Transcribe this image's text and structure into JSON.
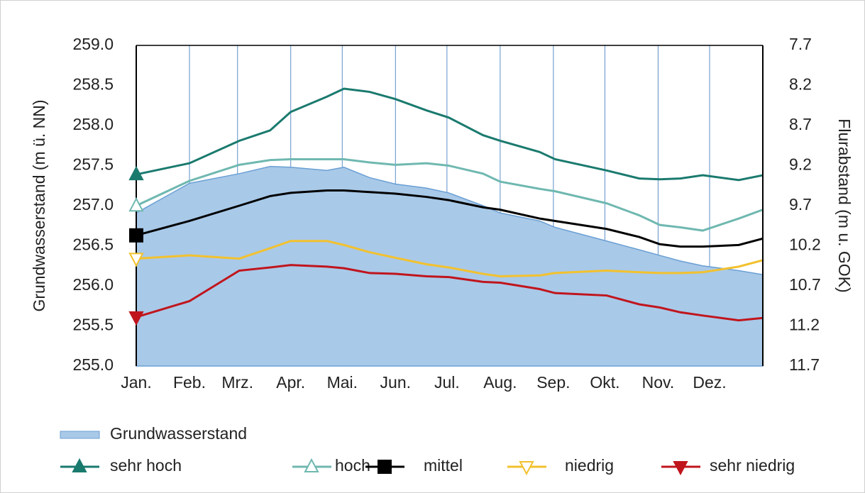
{
  "chart_data": {
    "type": "line",
    "y_label": "Grundwasserstand (m ü. NN)",
    "y2_label": "Flurabstand (m u. GOK)",
    "x": [
      1,
      32,
      61,
      79,
      91,
      112,
      122,
      137,
      152,
      170,
      183,
      203,
      213,
      236,
      245,
      275,
      294,
      306,
      318,
      331,
      352,
      366
    ],
    "xlim": [
      1,
      366
    ],
    "xticks": [
      {
        "value": 1,
        "label": "Jan."
      },
      {
        "value": 32,
        "label": "Feb."
      },
      {
        "value": 60,
        "label": "Mrz."
      },
      {
        "value": 91,
        "label": "Apr."
      },
      {
        "value": 121,
        "label": "Mai."
      },
      {
        "value": 152,
        "label": "Jun."
      },
      {
        "value": 182,
        "label": "Jul."
      },
      {
        "value": 213,
        "label": "Aug."
      },
      {
        "value": 244,
        "label": "Sep."
      },
      {
        "value": 274,
        "label": "Okt."
      },
      {
        "value": 305,
        "label": "Nov."
      },
      {
        "value": 335,
        "label": "Dez."
      }
    ],
    "ylim": [
      255,
      259
    ],
    "yticks": [
      {
        "value": 255,
        "label": "255.0"
      },
      {
        "value": 255.5,
        "label": "255.5"
      },
      {
        "value": 256,
        "label": "256.0"
      },
      {
        "value": 256.5,
        "label": "256.5"
      },
      {
        "value": 257,
        "label": "257.0"
      },
      {
        "value": 257.5,
        "label": "257.5"
      },
      {
        "value": 258,
        "label": "258.0"
      },
      {
        "value": 258.5,
        "label": "258.5"
      },
      {
        "value": 259,
        "label": "259.0"
      }
    ],
    "y2lim": [
      11.7,
      7.7
    ],
    "y2ticks": [
      11.7,
      11.2,
      10.7,
      10.2,
      9.7,
      9.2,
      8.7,
      8.2,
      7.7
    ],
    "grid": "x",
    "series": [
      {
        "name": "Grundwasserstand",
        "style": "area",
        "color": "#a9c9e8",
        "stroke": "#6a9fd4",
        "values": [
          256.91,
          257.28,
          257.4,
          257.49,
          257.48,
          257.44,
          257.48,
          257.35,
          257.27,
          257.22,
          257.16,
          257.0,
          256.91,
          256.81,
          256.73,
          256.56,
          256.45,
          256.38,
          256.31,
          256.25,
          256.19,
          256.14
        ]
      },
      {
        "name": "sehr hoch",
        "style": "line",
        "marker": "triangle-up-filled",
        "color": "#1a7a6e",
        "values": [
          257.39,
          257.53,
          257.81,
          257.94,
          258.17,
          258.36,
          258.46,
          258.42,
          258.33,
          258.19,
          258.1,
          257.88,
          257.81,
          257.67,
          257.58,
          257.44,
          257.34,
          257.33,
          257.34,
          257.38,
          257.32,
          257.38
        ]
      },
      {
        "name": "hoch",
        "style": "line",
        "marker": "triangle-up-open",
        "color": "#6fb8b0",
        "values": [
          257.0,
          257.31,
          257.51,
          257.57,
          257.58,
          257.58,
          257.58,
          257.54,
          257.51,
          257.53,
          257.5,
          257.4,
          257.3,
          257.21,
          257.18,
          257.03,
          256.88,
          256.76,
          256.73,
          256.69,
          256.84,
          256.95
        ]
      },
      {
        "name": "mittel",
        "style": "line",
        "marker": "square-filled",
        "color": "#000000",
        "values": [
          256.63,
          256.81,
          257.0,
          257.12,
          257.16,
          257.19,
          257.19,
          257.17,
          257.15,
          257.11,
          257.07,
          256.98,
          256.95,
          256.84,
          256.81,
          256.71,
          256.61,
          256.52,
          256.49,
          256.49,
          256.51,
          256.59
        ]
      },
      {
        "name": "niedrig",
        "style": "line",
        "marker": "triangle-down-open",
        "color": "#f2c12e",
        "values": [
          256.34,
          256.38,
          256.34,
          256.47,
          256.56,
          256.56,
          256.51,
          256.42,
          256.35,
          256.27,
          256.23,
          256.15,
          256.12,
          256.13,
          256.16,
          256.19,
          256.17,
          256.16,
          256.16,
          256.17,
          256.24,
          256.32
        ]
      },
      {
        "name": "sehr niedrig",
        "style": "line",
        "marker": "triangle-down-filled",
        "color": "#c0151d",
        "values": [
          255.61,
          255.81,
          256.19,
          256.23,
          256.26,
          256.24,
          256.22,
          256.16,
          256.15,
          256.12,
          256.11,
          256.05,
          256.04,
          255.96,
          255.91,
          255.88,
          255.77,
          255.73,
          255.67,
          255.63,
          255.57,
          255.6
        ]
      }
    ]
  }
}
